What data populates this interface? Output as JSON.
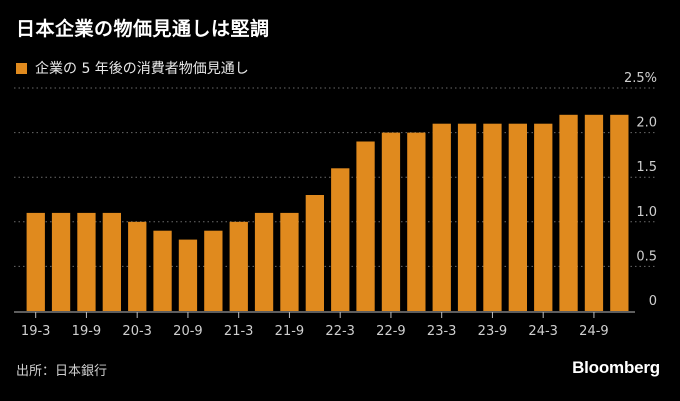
{
  "title": "日本企業の物価見通しは堅調",
  "source": "出所：日本銀行",
  "brand": "Bloomberg",
  "colors": {
    "bar": "#e08a1e",
    "background": "#000000",
    "grid": "#6a6a6a",
    "text": "#e8e8e8"
  },
  "chart_data": {
    "type": "bar",
    "legend": "企業の 5 年後の消費者物価見通し",
    "categories": [
      "19-3",
      "19-6",
      "19-9",
      "19-12",
      "20-3",
      "20-6",
      "20-9",
      "20-12",
      "21-3",
      "21-6",
      "21-9",
      "21-12",
      "22-3",
      "22-6",
      "22-9",
      "22-12",
      "23-3",
      "23-6",
      "23-9",
      "23-12",
      "24-3",
      "24-6",
      "24-9",
      "24-12"
    ],
    "x_tick_labels": [
      "19-3",
      "19-9",
      "20-3",
      "20-9",
      "21-3",
      "21-9",
      "22-3",
      "22-9",
      "23-3",
      "23-9",
      "24-3",
      "24-9"
    ],
    "series": [
      {
        "name": "企業の 5 年後の消費者物価見通し",
        "values": [
          1.1,
          1.1,
          1.1,
          1.1,
          1.0,
          0.9,
          0.8,
          0.9,
          1.0,
          1.1,
          1.1,
          1.3,
          1.6,
          1.9,
          2.0,
          2.0,
          2.1,
          2.1,
          2.1,
          2.1,
          2.1,
          2.2,
          2.2,
          2.2
        ]
      }
    ],
    "y_ticks": [
      0,
      0.5,
      1.0,
      1.5,
      2.0,
      2.5
    ],
    "y_tick_labels": [
      "0",
      "0.5",
      "1.0",
      "1.5",
      "2.0",
      "2.5%"
    ],
    "ylim": [
      0,
      2.5
    ],
    "grid": true,
    "axis_side": "right",
    "legend_position": "top-left"
  }
}
